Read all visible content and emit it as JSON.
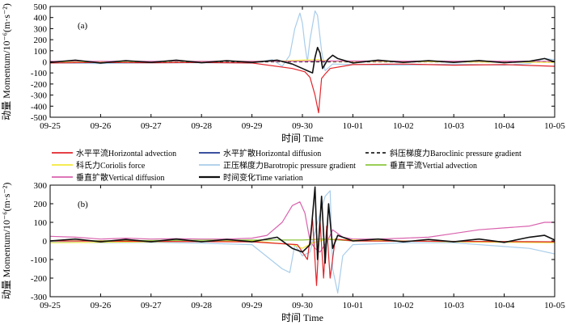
{
  "chart_data": [
    {
      "type": "line",
      "panel_label": "(a)",
      "xlabel": "时间 Time",
      "ylabel": "动量 Momentum/10⁻⁶(m·s⁻²)",
      "x_ticks": [
        "09-25",
        "09-26",
        "09-27",
        "09-28",
        "09-29",
        "09-30",
        "10-01",
        "10-02",
        "10-03",
        "10-04",
        "10-05"
      ],
      "ylim": [
        -500,
        500
      ],
      "y_ticks": [
        500,
        400,
        300,
        200,
        100,
        0,
        -100,
        -200,
        -300,
        -400,
        -500
      ],
      "grid": false,
      "series": [
        {
          "name": "正压梯度力 Barotropic pressure gradient",
          "color": "#a9cdea",
          "points": [
            [
              0,
              -10
            ],
            [
              1,
              -15
            ],
            [
              2,
              -10
            ],
            [
              3,
              -8
            ],
            [
              4,
              -12
            ],
            [
              4.4,
              20
            ],
            [
              4.6,
              -40
            ],
            [
              4.75,
              60
            ],
            [
              4.85,
              300
            ],
            [
              4.95,
              440
            ],
            [
              5.0,
              350
            ],
            [
              5.05,
              150
            ],
            [
              5.1,
              0
            ],
            [
              5.15,
              200
            ],
            [
              5.25,
              460
            ],
            [
              5.3,
              420
            ],
            [
              5.38,
              100
            ],
            [
              5.45,
              -80
            ],
            [
              5.6,
              -20
            ],
            [
              6,
              -25
            ],
            [
              7,
              -30
            ],
            [
              8,
              -20
            ],
            [
              9,
              -30
            ],
            [
              9.5,
              -15
            ],
            [
              9.8,
              30
            ],
            [
              10,
              20
            ]
          ]
        },
        {
          "name": "水平平流 Horizontal advection",
          "color": "#e2252b",
          "points": [
            [
              0,
              -10
            ],
            [
              1,
              -5
            ],
            [
              2,
              -8
            ],
            [
              3,
              -6
            ],
            [
              4,
              -10
            ],
            [
              4.8,
              -60
            ],
            [
              5.05,
              -90
            ],
            [
              5.15,
              -140
            ],
            [
              5.25,
              -300
            ],
            [
              5.32,
              -460
            ],
            [
              5.38,
              -150
            ],
            [
              5.45,
              -110
            ],
            [
              5.55,
              -60
            ],
            [
              6,
              -25
            ],
            [
              7,
              -20
            ],
            [
              8,
              -30
            ],
            [
              9,
              -25
            ],
            [
              10,
              -40
            ]
          ]
        },
        {
          "name": "斜压梯度力 Baroclinic pressure gradient",
          "color": "#222222",
          "dash": "4,3",
          "points": [
            [
              0,
              0
            ],
            [
              10,
              0
            ]
          ]
        },
        {
          "name": "科氏力 Coriolis force",
          "color": "#f2e83a",
          "points": [
            [
              0,
              0
            ],
            [
              4.5,
              5
            ],
            [
              5,
              15
            ],
            [
              5.3,
              20
            ],
            [
              5.6,
              5
            ],
            [
              10,
              -5
            ]
          ]
        },
        {
          "name": "垂直扩散 Vertical diffusion",
          "color": "#d962ae",
          "points": [
            [
              0,
              5
            ],
            [
              5,
              5
            ],
            [
              5.3,
              8
            ],
            [
              10,
              5
            ]
          ]
        },
        {
          "name": "时间变化 Time variation",
          "color": "#111111",
          "points": [
            [
              0,
              -5
            ],
            [
              0.5,
              15
            ],
            [
              1,
              -10
            ],
            [
              1.5,
              10
            ],
            [
              2,
              -5
            ],
            [
              2.5,
              15
            ],
            [
              3,
              -8
            ],
            [
              3.5,
              10
            ],
            [
              4,
              -5
            ],
            [
              4.5,
              15
            ],
            [
              4.8,
              -20
            ],
            [
              5.0,
              -60
            ],
            [
              5.1,
              -80
            ],
            [
              5.2,
              -100
            ],
            [
              5.25,
              40
            ],
            [
              5.3,
              130
            ],
            [
              5.35,
              80
            ],
            [
              5.4,
              -60
            ],
            [
              5.5,
              20
            ],
            [
              5.6,
              60
            ],
            [
              5.7,
              30
            ],
            [
              6,
              -10
            ],
            [
              6.5,
              15
            ],
            [
              7,
              -5
            ],
            [
              7.5,
              10
            ],
            [
              8,
              -5
            ],
            [
              8.5,
              12
            ],
            [
              9,
              -8
            ],
            [
              9.5,
              5
            ],
            [
              9.8,
              30
            ],
            [
              10,
              0
            ]
          ]
        }
      ]
    },
    {
      "type": "line",
      "panel_label": "(b)",
      "xlabel": "时间 Time",
      "ylabel": "动量 Momentum/10⁻⁶(m·s⁻²)",
      "x_ticks": [
        "09-25",
        "09-26",
        "09-27",
        "09-28",
        "09-29",
        "09-30",
        "10-01",
        "10-02",
        "10-03",
        "10-04",
        "10-05"
      ],
      "ylim": [
        -300,
        300
      ],
      "y_ticks": [
        300,
        200,
        100,
        0,
        -100,
        -200,
        -300
      ],
      "grid": false,
      "series": [
        {
          "name": "正压梯度力 Barotropic pressure gradient",
          "color": "#a9cdea",
          "points": [
            [
              0,
              -5
            ],
            [
              1,
              -10
            ],
            [
              2,
              -8
            ],
            [
              3,
              -12
            ],
            [
              4,
              -20
            ],
            [
              4.6,
              -150
            ],
            [
              4.75,
              -170
            ],
            [
              4.85,
              -20
            ],
            [
              5.0,
              -80
            ],
            [
              5.15,
              -60
            ],
            [
              5.3,
              100
            ],
            [
              5.45,
              240
            ],
            [
              5.55,
              270
            ],
            [
              5.6,
              -150
            ],
            [
              5.7,
              -280
            ],
            [
              5.8,
              -80
            ],
            [
              6,
              -20
            ],
            [
              7,
              -10
            ],
            [
              8,
              -10
            ],
            [
              9,
              -30
            ],
            [
              9.5,
              -40
            ],
            [
              10,
              -70
            ]
          ]
        },
        {
          "name": "垂直扩散 Vertical diffusion",
          "color": "#d962ae",
          "points": [
            [
              0,
              25
            ],
            [
              0.5,
              20
            ],
            [
              1,
              10
            ],
            [
              1.5,
              15
            ],
            [
              2,
              10
            ],
            [
              2.5,
              12
            ],
            [
              3,
              10
            ],
            [
              3.5,
              10
            ],
            [
              4,
              15
            ],
            [
              4.3,
              30
            ],
            [
              4.6,
              100
            ],
            [
              4.8,
              190
            ],
            [
              4.95,
              210
            ],
            [
              5.05,
              150
            ],
            [
              5.15,
              0
            ],
            [
              5.25,
              -40
            ],
            [
              5.35,
              -60
            ],
            [
              5.5,
              0
            ],
            [
              5.6,
              60
            ],
            [
              5.8,
              20
            ],
            [
              6,
              10
            ],
            [
              6.5,
              10
            ],
            [
              7,
              15
            ],
            [
              7.5,
              20
            ],
            [
              8,
              40
            ],
            [
              8.5,
              60
            ],
            [
              9,
              70
            ],
            [
              9.5,
              80
            ],
            [
              9.8,
              100
            ],
            [
              10,
              100
            ]
          ]
        },
        {
          "name": "科氏力 Coriolis force",
          "color": "#f2e83a",
          "points": [
            [
              0,
              -10
            ],
            [
              2,
              -5
            ],
            [
              4,
              0
            ],
            [
              4.8,
              -20
            ],
            [
              5.0,
              -40
            ],
            [
              5.2,
              -10
            ],
            [
              5.5,
              10
            ],
            [
              6,
              5
            ],
            [
              8,
              -5
            ],
            [
              10,
              -10
            ]
          ]
        },
        {
          "name": "垂直平流 Vertical advection",
          "color": "#8cc63f",
          "points": [
            [
              0,
              0
            ],
            [
              4,
              5
            ],
            [
              5,
              5
            ],
            [
              5.4,
              10
            ],
            [
              6,
              0
            ],
            [
              10,
              -5
            ]
          ]
        },
        {
          "name": "水平平流 Horizontal advection",
          "color": "#e2252b",
          "points": [
            [
              0,
              0
            ],
            [
              4,
              -5
            ],
            [
              4.9,
              -20
            ],
            [
              5.1,
              -100
            ],
            [
              5.2,
              120
            ],
            [
              5.28,
              -240
            ],
            [
              5.35,
              110
            ],
            [
              5.42,
              -200
            ],
            [
              5.48,
              80
            ],
            [
              5.55,
              -200
            ],
            [
              5.65,
              10
            ],
            [
              6,
              0
            ],
            [
              10,
              -5
            ]
          ]
        },
        {
          "name": "时间变化 Time variation",
          "color": "#111111",
          "points": [
            [
              0,
              0
            ],
            [
              0.5,
              10
            ],
            [
              1,
              -5
            ],
            [
              1.5,
              8
            ],
            [
              2,
              -5
            ],
            [
              2.5,
              10
            ],
            [
              3,
              -5
            ],
            [
              3.5,
              8
            ],
            [
              4,
              -5
            ],
            [
              4.5,
              20
            ],
            [
              4.8,
              -40
            ],
            [
              5.0,
              -60
            ],
            [
              5.15,
              -20
            ],
            [
              5.25,
              290
            ],
            [
              5.3,
              -100
            ],
            [
              5.38,
              240
            ],
            [
              5.45,
              -120
            ],
            [
              5.52,
              200
            ],
            [
              5.6,
              -40
            ],
            [
              5.7,
              30
            ],
            [
              6,
              0
            ],
            [
              6.5,
              10
            ],
            [
              7,
              -5
            ],
            [
              7.5,
              8
            ],
            [
              8,
              -5
            ],
            [
              8.5,
              10
            ],
            [
              9,
              -8
            ],
            [
              9.5,
              20
            ],
            [
              9.8,
              30
            ],
            [
              10,
              5
            ]
          ]
        }
      ]
    }
  ],
  "legend": [
    {
      "cn": "水平平流",
      "en": "Horizontal advection",
      "color": "#e2252b",
      "style": "solid",
      "bold": false
    },
    {
      "cn": "水平扩散",
      "en": "Horizontal diffusion",
      "color": "#1f3a93",
      "style": "solid",
      "bold": false
    },
    {
      "cn": "斜压梯度力",
      "en": "Baroclinic pressure gradient",
      "color": "#222222",
      "style": "dashed",
      "bold": false
    },
    {
      "cn": "科氏力",
      "en": "Coriolis force",
      "color": "#f2e83a",
      "style": "solid",
      "bold": false
    },
    {
      "cn": "正压梯度力",
      "en": "Barotropic pressure gradient",
      "color": "#a9cdea",
      "style": "solid",
      "bold": false
    },
    {
      "cn": "垂直平流",
      "en": "Vertial advection",
      "color": "#8cc63f",
      "style": "solid",
      "bold": false
    },
    {
      "cn": "垂直扩散",
      "en": "Vertical diffusion",
      "color": "#d962ae",
      "style": "solid",
      "bold": false
    },
    {
      "cn": "时间变化",
      "en": "Time variation",
      "color": "#111111",
      "style": "solid",
      "bold": true
    }
  ]
}
